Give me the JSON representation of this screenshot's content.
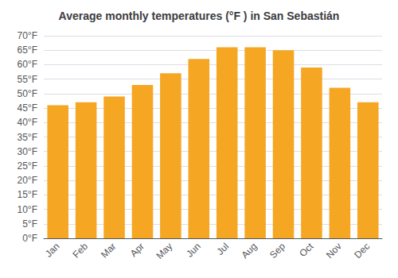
{
  "chart_data": {
    "type": "bar",
    "title": "Average monthly temperatures (°F ) in San Sebastián",
    "categories": [
      "Jan",
      "Feb",
      "Mar",
      "Apr",
      "May",
      "Jun",
      "Jul",
      "Aug",
      "Sep",
      "Oct",
      "Nov",
      "Dec"
    ],
    "values": [
      46,
      47,
      49,
      53,
      57,
      62,
      66,
      66,
      65,
      59,
      52,
      47
    ],
    "color": "#F5A623",
    "ylim": [
      0,
      70
    ],
    "yticks": [
      {
        "value": 0,
        "label": "0°F"
      },
      {
        "value": 5,
        "label": "5°F"
      },
      {
        "value": 10,
        "label": "10°F"
      },
      {
        "value": 15,
        "label": "15°F"
      },
      {
        "value": 20,
        "label": "20°F"
      },
      {
        "value": 25,
        "label": "25°F"
      },
      {
        "value": 30,
        "label": "30°F"
      },
      {
        "value": 35,
        "label": "35°F"
      },
      {
        "value": 40,
        "label": "40°F"
      },
      {
        "value": 45,
        "label": "45°F"
      },
      {
        "value": 50,
        "label": "50°F"
      },
      {
        "value": 55,
        "label": "55°F"
      },
      {
        "value": 60,
        "label": "60°F"
      },
      {
        "value": 65,
        "label": "65°F"
      },
      {
        "value": 70,
        "label": "70°F"
      }
    ],
    "grid": true
  }
}
